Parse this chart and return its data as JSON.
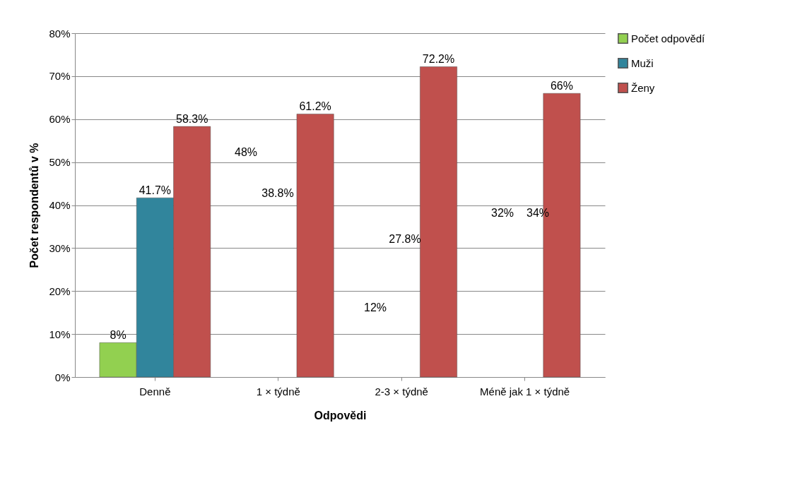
{
  "chart_data": {
    "type": "bar",
    "xlabel": "Odpovědi",
    "ylabel": "Počet respondentů v %",
    "categories": [
      "Denně",
      "1 × týdně",
      "2-3 × týdně",
      "Méně jak 1 × týdně"
    ],
    "series": [
      {
        "name": "Počet odpovědí",
        "color": "#92d050",
        "values": [
          8,
          null,
          null,
          null
        ],
        "value_labels": [
          "8%",
          null,
          null,
          null
        ]
      },
      {
        "name": "Muži",
        "color": "#31859c",
        "values": [
          41.7,
          null,
          null,
          null
        ],
        "value_labels": [
          "41.7%",
          null,
          null,
          null
        ]
      },
      {
        "name": "Ženy",
        "color": "#c0504d",
        "values": [
          58.3,
          61.2,
          72.2,
          66
        ],
        "value_labels": [
          "58.3%",
          "61.2%",
          "72.2%",
          "66%"
        ]
      }
    ],
    "annotations": [
      "48%",
      "38.8%",
      "12%",
      "27.8%",
      "32%",
      "34%"
    ],
    "ylim": [
      0,
      80
    ],
    "yticks": [
      {
        "value": 0,
        "label": "0%"
      },
      {
        "value": 10,
        "label": "10%"
      },
      {
        "value": 20,
        "label": "20%"
      },
      {
        "value": 30,
        "label": "30%"
      },
      {
        "value": 40,
        "label": "40%"
      },
      {
        "value": 50,
        "label": "50%"
      },
      {
        "value": 60,
        "label": "60%"
      },
      {
        "value": 70,
        "label": "70%"
      },
      {
        "value": 80,
        "label": "80%"
      }
    ],
    "grid": "y",
    "legend": "right"
  }
}
